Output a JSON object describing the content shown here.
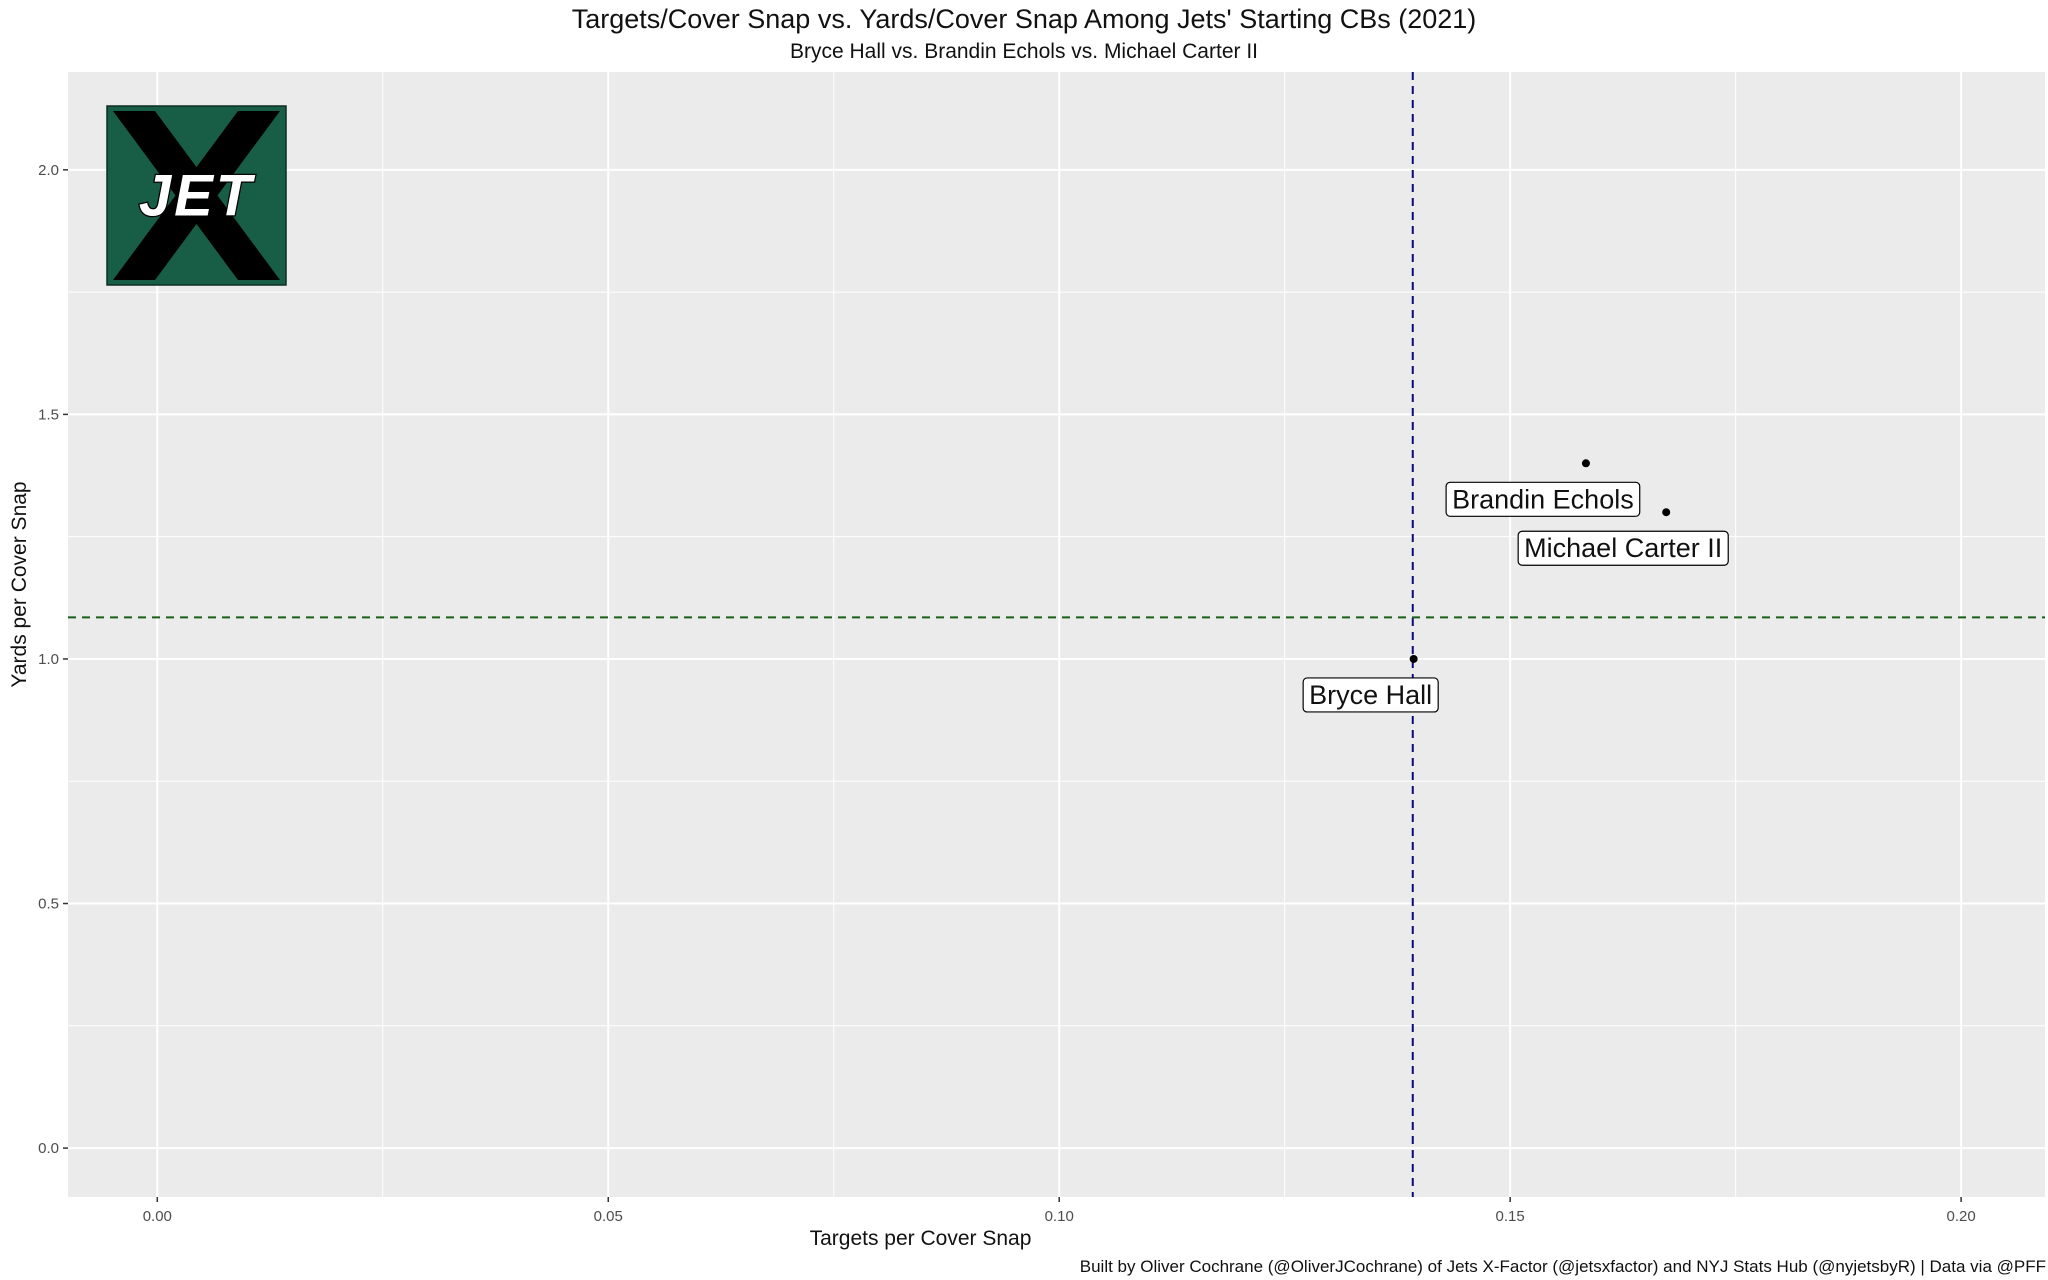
{
  "chart_data": {
    "type": "scatter",
    "title": "Targets/Cover Snap vs. Yards/Cover Snap Among Jets' Starting CBs (2021)",
    "subtitle": "Bryce Hall vs. Brandin Echols vs. Michael Carter II",
    "xlabel": "Targets per Cover Snap",
    "ylabel": "Yards per Cover Snap",
    "caption": "Built by Oliver Cochrane (@OliverJCochrane) of Jets X-Factor (@jetsxfactor) and NYJ Stats Hub (@nyjetsbyR) | Data via @PFF",
    "xlim": [
      -0.0099,
      0.2093
    ],
    "ylim": [
      -0.1,
      2.2
    ],
    "x_ticks": [
      0.0,
      0.05,
      0.1,
      0.15,
      0.2
    ],
    "x_tick_labels": [
      "0.00",
      "0.05",
      "0.10",
      "0.15",
      "0.20"
    ],
    "y_ticks": [
      0.0,
      0.5,
      1.0,
      1.5,
      2.0
    ],
    "y_tick_labels": [
      "0.0",
      "0.5",
      "1.0",
      "1.5",
      "2.0"
    ],
    "grid": true,
    "points": [
      {
        "label": "Bryce Hall",
        "x": 0.1393,
        "y": 1.0
      },
      {
        "label": "Brandin Echols",
        "x": 0.1584,
        "y": 1.4
      },
      {
        "label": "Michael Carter II",
        "x": 0.1673,
        "y": 1.3
      }
    ],
    "reference_lines": {
      "vertical_x": 0.1392,
      "horizontal_y": 1.085
    },
    "colors": {
      "panel_bg": "#ebebeb",
      "grid": "#ffffff",
      "vertical_line": "#0b0b7a",
      "horizontal_line": "#1a5c1a",
      "point": "#000000",
      "logo_green": "#185d45",
      "logo_black": "#000000"
    },
    "logo_text": "JET"
  }
}
